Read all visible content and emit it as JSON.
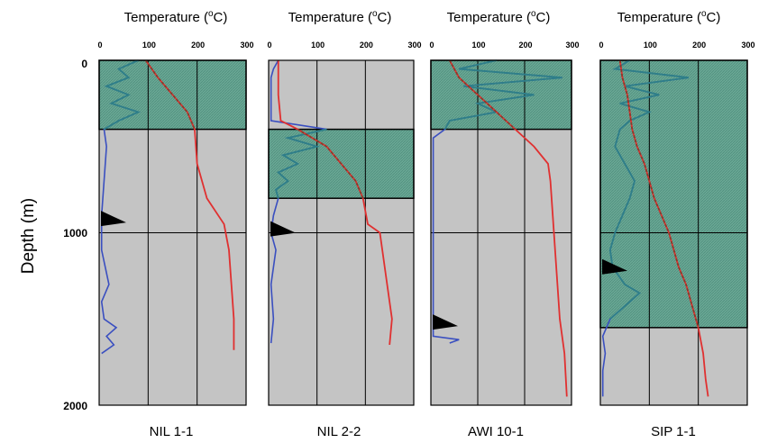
{
  "chart_data": {
    "type": "line",
    "ylabel": "Depth (m)",
    "y_ticks": [
      "0",
      "1000",
      "2000"
    ],
    "ylim": [
      2000,
      0
    ],
    "xlim": [
      0,
      300
    ],
    "x_ticks": [
      "0",
      "100",
      "200",
      "300"
    ],
    "colors": {
      "plot_bg": "#c4c4c4",
      "zone_fill": "#6aa895",
      "temperature": "#e03030",
      "gamma": "#3a4fc0",
      "gamma_in_zone": "#2e7f88",
      "marker": "#000000"
    },
    "panels": [
      {
        "well": "NIL 1-1",
        "x_title": "Temperature (",
        "x_title_unit": "C)",
        "x_title_deg": "o",
        "zones": [
          [
            0,
            400
          ]
        ],
        "marker_depth": 920,
        "hlines": [
          1000
        ],
        "temperature": {
          "depth": [
            0,
            100,
            200,
            300,
            400,
            600,
            800,
            950,
            1100,
            1300,
            1500,
            1680
          ],
          "value": [
            95,
            120,
            150,
            180,
            195,
            200,
            220,
            255,
            265,
            270,
            275,
            275
          ]
        },
        "gamma": {
          "depth": [
            0,
            50,
            100,
            150,
            200,
            250,
            300,
            350,
            400,
            500,
            700,
            900,
            1100,
            1300,
            1400,
            1500,
            1550,
            1600,
            1650,
            1700
          ],
          "value": [
            80,
            40,
            60,
            15,
            60,
            25,
            80,
            40,
            10,
            15,
            10,
            5,
            5,
            20,
            5,
            10,
            35,
            15,
            30,
            5
          ]
        }
      },
      {
        "well": "NIL 2-2",
        "x_title": "Temperature (",
        "x_title_unit": "C)",
        "x_title_deg": "o",
        "zones": [
          [
            400,
            800
          ]
        ],
        "marker_depth": 980,
        "hlines": [
          1000
        ],
        "temperature": {
          "depth": [
            0,
            200,
            350,
            400,
            500,
            600,
            700,
            800,
            950,
            1000,
            1100,
            1300,
            1500,
            1650
          ],
          "value": [
            20,
            20,
            25,
            60,
            120,
            150,
            180,
            195,
            205,
            230,
            235,
            245,
            255,
            250
          ]
        },
        "gamma": {
          "depth": [
            0,
            50,
            100,
            350,
            400,
            450,
            500,
            550,
            600,
            650,
            700,
            750,
            800,
            900,
            1000,
            1100,
            1300,
            1500,
            1640
          ],
          "value": [
            20,
            10,
            5,
            5,
            120,
            40,
            100,
            30,
            60,
            20,
            40,
            15,
            20,
            10,
            5,
            15,
            5,
            10,
            5
          ]
        }
      },
      {
        "well": "AWI 10-1",
        "x_title": "Temperature (",
        "x_title_unit": "C)",
        "x_title_deg": "o",
        "zones": [
          [
            0,
            400
          ]
        ],
        "marker_depth": 1520,
        "hlines": [
          1000
        ],
        "temperature": {
          "depth": [
            0,
            100,
            200,
            300,
            400,
            500,
            600,
            700,
            900,
            1100,
            1300,
            1500,
            1700,
            1950
          ],
          "value": [
            40,
            60,
            100,
            140,
            180,
            220,
            250,
            255,
            260,
            265,
            270,
            275,
            285,
            290
          ]
        },
        "gamma": {
          "depth": [
            0,
            50,
            100,
            150,
            200,
            250,
            300,
            350,
            400,
            450,
            1600,
            1620,
            1640
          ],
          "value": [
            140,
            60,
            280,
            70,
            220,
            100,
            140,
            40,
            30,
            5,
            5,
            60,
            40
          ]
        }
      },
      {
        "well": "SIP 1-1",
        "x_title": "Temperature (",
        "x_title_unit": "C)",
        "x_title_deg": "o",
        "zones": [
          [
            0,
            1550
          ]
        ],
        "marker_depth": 1200,
        "hlines": [
          1000
        ],
        "temperature": {
          "depth": [
            0,
            100,
            200,
            300,
            400,
            500,
            600,
            800,
            1000,
            1100,
            1200,
            1300,
            1400,
            1550,
            1700,
            1850,
            1950
          ],
          "value": [
            40,
            45,
            55,
            60,
            65,
            75,
            90,
            110,
            140,
            150,
            160,
            175,
            185,
            200,
            210,
            215,
            220
          ]
        },
        "gamma": {
          "depth": [
            0,
            50,
            100,
            150,
            200,
            250,
            300,
            350,
            400,
            500,
            600,
            700,
            800,
            900,
            1000,
            1100,
            1200,
            1300,
            1350,
            1400,
            1500,
            1600,
            1700,
            1800,
            1950
          ],
          "value": [
            60,
            30,
            180,
            50,
            120,
            40,
            100,
            60,
            40,
            30,
            50,
            70,
            60,
            45,
            30,
            20,
            25,
            50,
            80,
            60,
            20,
            5,
            10,
            5,
            5
          ]
        }
      }
    ]
  }
}
